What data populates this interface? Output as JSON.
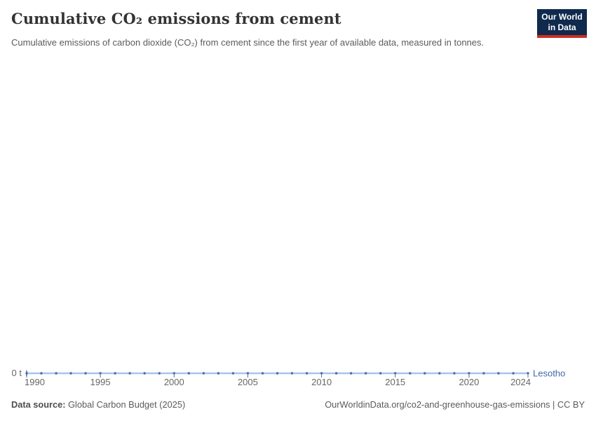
{
  "header": {
    "title": "Cumulative CO₂ emissions from cement",
    "subtitle": "Cumulative emissions of carbon dioxide (CO₂) from cement since the first year of available data, measured in tonnes.",
    "logo": {
      "line1": "Our World",
      "line2": "in Data"
    }
  },
  "chart_data": {
    "type": "line",
    "title": "Cumulative CO₂ emissions from cement",
    "entity": "Lesotho",
    "unit": "t",
    "y_axis_zero_label": "0 t",
    "x_axis_range": [
      1990,
      2024
    ],
    "x_ticks": [
      1990,
      1995,
      2000,
      2005,
      2010,
      2015,
      2020,
      2024
    ],
    "grid": "off",
    "legend_position": "line-end-label",
    "x": [
      1990,
      1991,
      1992,
      1993,
      1994,
      1995,
      1996,
      1997,
      1998,
      1999,
      2000,
      2001,
      2002,
      2003,
      2004,
      2005,
      2006,
      2007,
      2008,
      2009,
      2010,
      2011,
      2012,
      2013,
      2014,
      2015,
      2016,
      2017,
      2018,
      2019,
      2020,
      2021,
      2022,
      2023,
      2024
    ],
    "series": [
      {
        "name": "Lesotho",
        "values": [
          0,
          0,
          0,
          0,
          0,
          0,
          0,
          0,
          0,
          0,
          0,
          0,
          0,
          0,
          0,
          0,
          0,
          0,
          0,
          0,
          0,
          0,
          0,
          0,
          0,
          0,
          0,
          0,
          0,
          0,
          0,
          0,
          0,
          0,
          0
        ]
      }
    ],
    "colors": {
      "line": "#a9c6e8",
      "marker": "#4a6ca8",
      "tick_label": "#666666",
      "entity_label": "#4268aa"
    }
  },
  "footer": {
    "data_source_label": "Data source:",
    "data_source_value": "Global Carbon Budget (2025)",
    "note": "OurWorldinData.org/co2-and-greenhouse-gas-emissions | CC BY"
  }
}
